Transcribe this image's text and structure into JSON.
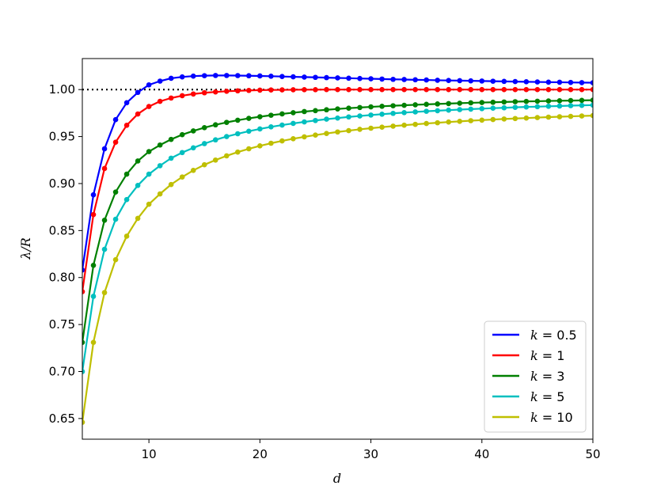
{
  "chart_data": {
    "type": "line",
    "title": "",
    "xlabel": "d",
    "ylabel": "λ/R",
    "xlim": [
      4,
      50
    ],
    "ylim": [
      0.628,
      1.033
    ],
    "x_ticks": [
      "10",
      "20",
      "30",
      "40",
      "50"
    ],
    "y_ticks": [
      "0.65",
      "0.70",
      "0.75",
      "0.80",
      "0.85",
      "0.90",
      "0.95",
      "1.00"
    ],
    "reference_line": {
      "y": 1.0,
      "style": "dotted",
      "color": "#000000"
    },
    "legend_position": "lower-right",
    "x": [
      4,
      5,
      6,
      7,
      8,
      9,
      10,
      11,
      12,
      13,
      14,
      15,
      16,
      17,
      18,
      19,
      20,
      21,
      22,
      23,
      24,
      25,
      26,
      27,
      28,
      29,
      30,
      31,
      32,
      33,
      34,
      35,
      36,
      37,
      38,
      39,
      40,
      41,
      42,
      43,
      44,
      45,
      46,
      47,
      48,
      49,
      50
    ],
    "series": [
      {
        "name": "k = 0.5",
        "k": "0.5",
        "color": "#0000ff",
        "values": [
          0.808,
          0.888,
          0.937,
          0.968,
          0.986,
          0.997,
          1.005,
          1.009,
          1.012,
          1.0135,
          1.0143,
          1.0148,
          1.015,
          1.015,
          1.0149,
          1.0147,
          1.0145,
          1.0142,
          1.0139,
          1.0136,
          1.0133,
          1.013,
          1.0127,
          1.0124,
          1.0121,
          1.0118,
          1.0115,
          1.0112,
          1.0109,
          1.0107,
          1.0104,
          1.0102,
          1.0099,
          1.0097,
          1.0095,
          1.0093,
          1.0091,
          1.0089,
          1.0087,
          1.0085,
          1.0083,
          1.0081,
          1.0079,
          1.0078,
          1.0076,
          1.0074,
          1.0073
        ]
      },
      {
        "name": "k = 1",
        "k": "1",
        "color": "#ff0000",
        "values": [
          0.785,
          0.867,
          0.916,
          0.944,
          0.962,
          0.974,
          0.982,
          0.9875,
          0.991,
          0.9935,
          0.9953,
          0.9966,
          0.9975,
          0.9982,
          0.9987,
          0.9991,
          0.9994,
          0.9996,
          0.9997,
          0.9998,
          0.9999,
          0.9999,
          1.0,
          1.0,
          1.0,
          1.0,
          1.0,
          1.0,
          1.0,
          1.0,
          1.0,
          1.0,
          1.0,
          1.0,
          1.0,
          1.0,
          1.0,
          1.0,
          1.0,
          1.0,
          1.0,
          1.0,
          1.0,
          1.0,
          1.0,
          1.0,
          1.0
        ]
      },
      {
        "name": "k = 3",
        "k": "3",
        "color": "#008000",
        "values": [
          0.731,
          0.813,
          0.861,
          0.891,
          0.91,
          0.924,
          0.934,
          0.941,
          0.947,
          0.952,
          0.956,
          0.9595,
          0.9625,
          0.9651,
          0.9674,
          0.9694,
          0.9711,
          0.9727,
          0.9741,
          0.9754,
          0.9766,
          0.9776,
          0.9785,
          0.9794,
          0.9802,
          0.9809,
          0.9816,
          0.9822,
          0.9828,
          0.9833,
          0.9838,
          0.9843,
          0.9847,
          0.9851,
          0.9855,
          0.9859,
          0.9862,
          0.9865,
          0.9868,
          0.9871,
          0.9874,
          0.9876,
          0.9879,
          0.9881,
          0.9883,
          0.9885,
          0.9887
        ]
      },
      {
        "name": "k = 5",
        "k": "5",
        "color": "#00bfbf",
        "values": [
          0.7,
          0.78,
          0.83,
          0.862,
          0.883,
          0.898,
          0.91,
          0.919,
          0.927,
          0.933,
          0.938,
          0.9425,
          0.9465,
          0.95,
          0.953,
          0.9557,
          0.9581,
          0.9603,
          0.9622,
          0.964,
          0.9656,
          0.9671,
          0.9685,
          0.9697,
          0.9709,
          0.9719,
          0.9729,
          0.9738,
          0.9747,
          0.9755,
          0.9762,
          0.9769,
          0.9775,
          0.9781,
          0.9787,
          0.9792,
          0.9797,
          0.9802,
          0.9806,
          0.9811,
          0.9815,
          0.9818,
          0.9822,
          0.9825,
          0.9829,
          0.9832,
          0.9835
        ]
      },
      {
        "name": "k = 10",
        "k": "10",
        "color": "#bfbf00",
        "values": [
          0.646,
          0.731,
          0.784,
          0.819,
          0.844,
          0.863,
          0.878,
          0.889,
          0.899,
          0.907,
          0.914,
          0.92,
          0.925,
          0.9295,
          0.9335,
          0.937,
          0.9401,
          0.9429,
          0.9454,
          0.9477,
          0.9497,
          0.9516,
          0.9533,
          0.9549,
          0.9563,
          0.9577,
          0.9589,
          0.96,
          0.9611,
          0.9621,
          0.963,
          0.9639,
          0.9647,
          0.9655,
          0.9662,
          0.9669,
          0.9675,
          0.9681,
          0.9687,
          0.9692,
          0.9697,
          0.9702,
          0.9707,
          0.9711,
          0.9715,
          0.9719,
          0.9723
        ]
      }
    ]
  }
}
